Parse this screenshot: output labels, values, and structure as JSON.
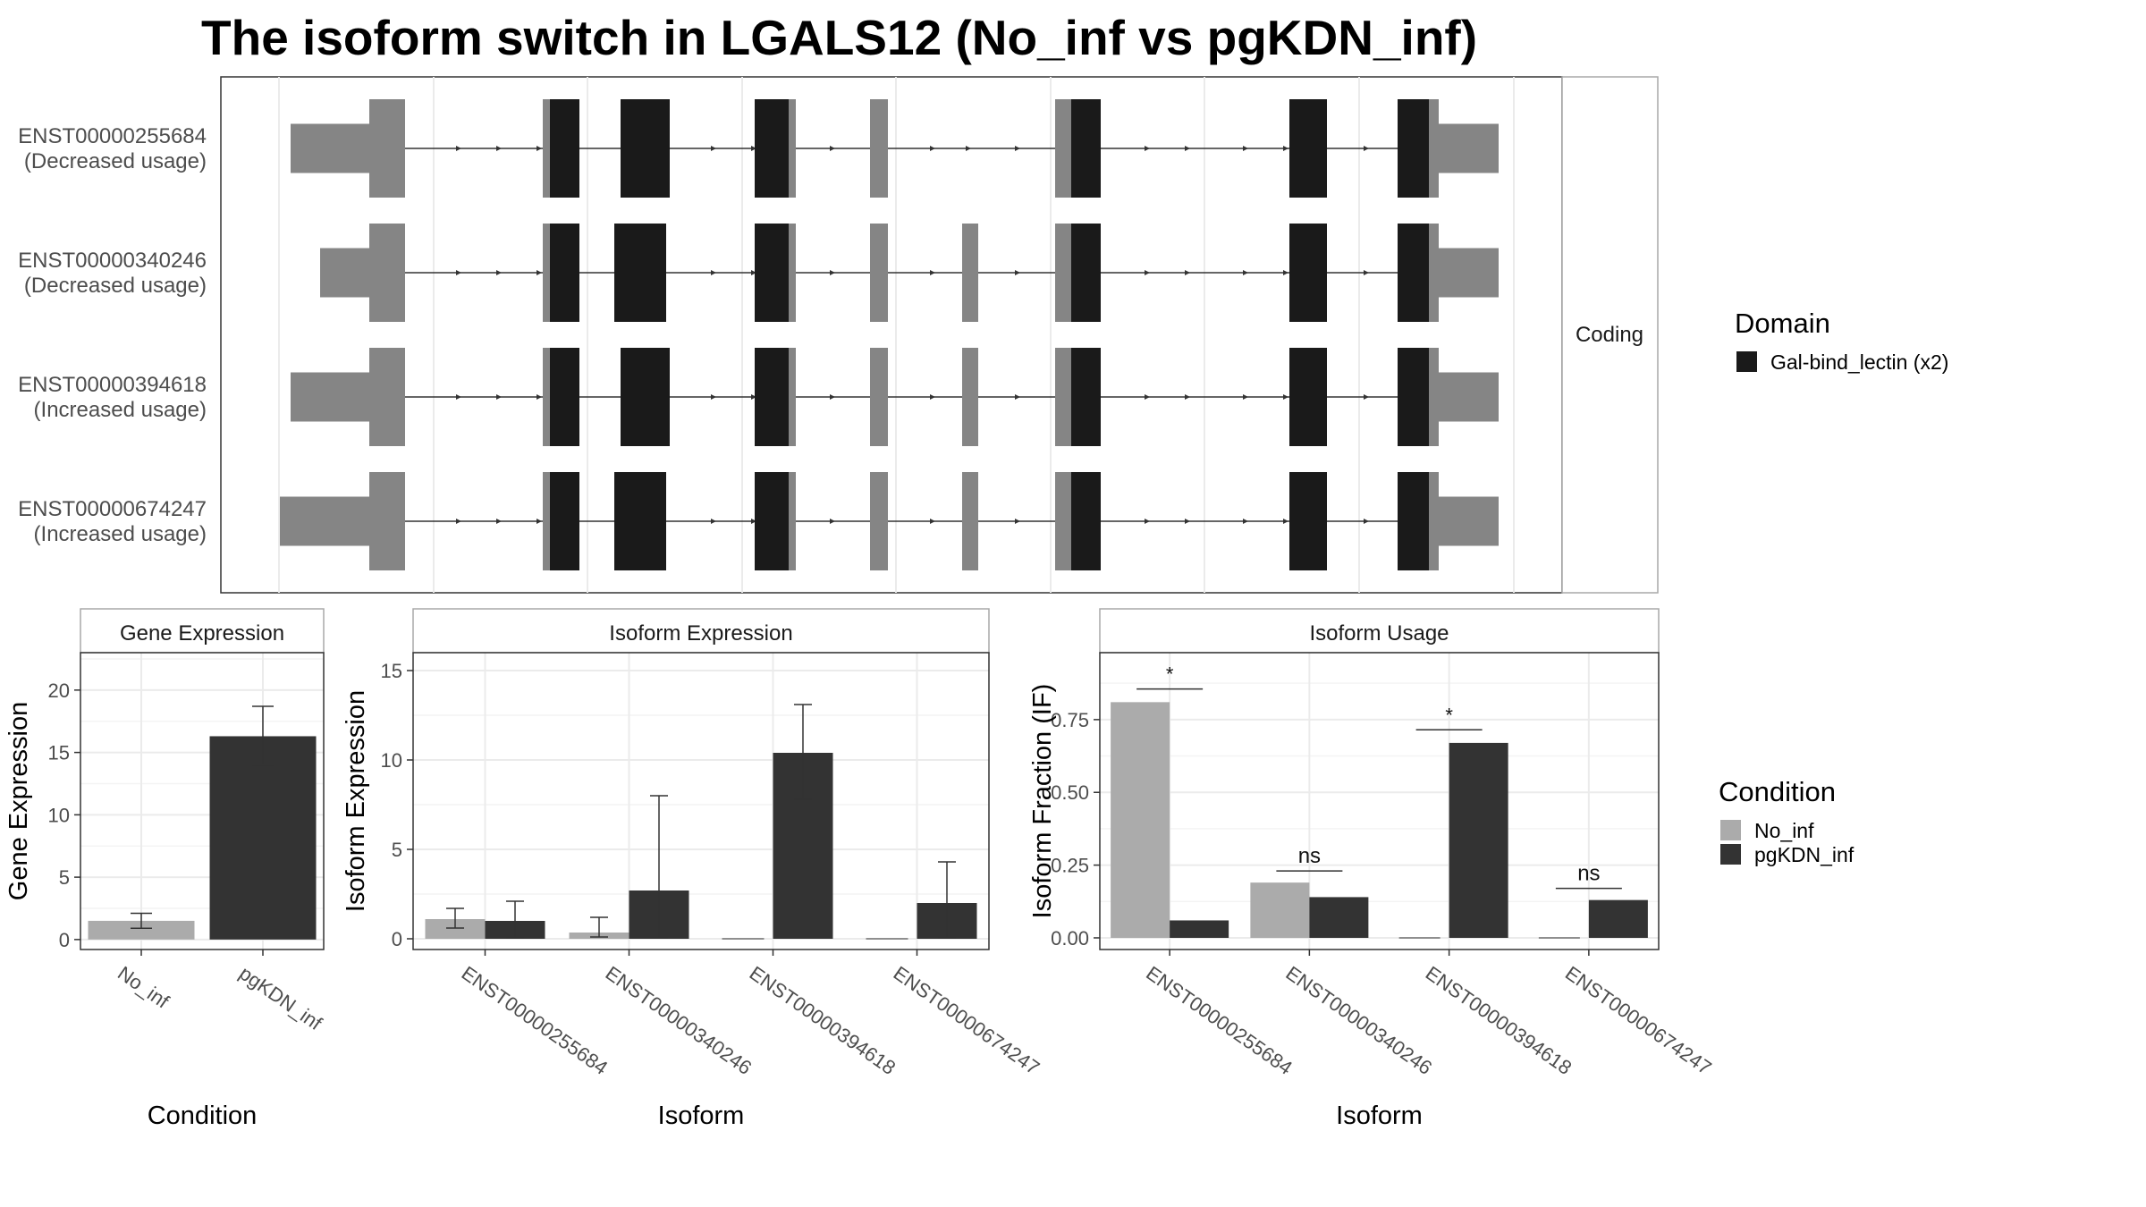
{
  "title": "The isoform switch in LGALS12 (No_inf vs pgKDN_inf)",
  "colors": {
    "utr": "#858585",
    "domain": "#1a1a1a",
    "no_inf": "#ababab",
    "pgkdn_inf": "#333333",
    "panel_border": "#333333",
    "strip_fill": "#ffffff",
    "strip_border": "#a8a8a8",
    "grid": "#ebebeb",
    "text_dark": "#1a1a1a",
    "text_axis": "#4d4d4d"
  },
  "structure": {
    "facet_label": "Coding",
    "legend": {
      "title": "Domain",
      "items": [
        {
          "label": "Gal-bind_lectin (x2)",
          "color": "#1a1a1a"
        }
      ]
    },
    "transcripts": [
      {
        "id": "ENST00000255684",
        "usage": "(Decreased usage)",
        "utr_start": 12,
        "exon7": false
      },
      {
        "id": "ENST00000340246",
        "usage": "(Decreased usage)",
        "utr_start": 45,
        "exon7": true
      },
      {
        "id": "ENST00000394618",
        "usage": "(Increased usage)",
        "utr_start": 12,
        "exon7": true
      },
      {
        "id": "ENST00000674247",
        "usage": "(Increased usage)",
        "utr_start": 0,
        "exon7": true
      }
    ]
  },
  "chart_data": [
    {
      "type": "bar",
      "title": "Gene Expression",
      "xlabel": "Condition",
      "ylabel": "Gene Expression",
      "categories": [
        "No_inf",
        "pgKDN_inf"
      ],
      "values": [
        1.5,
        16.3
      ],
      "error_low": [
        0.9,
        14.0
      ],
      "error_high": [
        2.1,
        18.7
      ],
      "ylim": [
        -0.8,
        23
      ],
      "yticks": [
        0,
        5,
        10,
        15,
        20
      ],
      "ytick_labels": [
        "0",
        "5",
        "10",
        "15",
        "20"
      ]
    },
    {
      "type": "bar",
      "title": "Isoform Expression",
      "xlabel": "Isoform",
      "ylabel": "Isoform Expression",
      "categories": [
        "ENST00000255684",
        "ENST00000340246",
        "ENST00000394618",
        "ENST00000674247"
      ],
      "series": [
        {
          "name": "No_inf",
          "values": [
            1.1,
            0.35,
            0,
            0
          ],
          "error_low": [
            0.6,
            0.1,
            0,
            0
          ],
          "error_high": [
            1.7,
            1.2,
            0,
            0
          ]
        },
        {
          "name": "pgKDN_inf",
          "values": [
            1.0,
            2.7,
            10.4,
            2.0
          ],
          "error_low": [
            0.05,
            0.05,
            7.8,
            0.05
          ],
          "error_high": [
            2.1,
            8.0,
            13.1,
            4.3
          ]
        }
      ],
      "ylim": [
        -0.6,
        16
      ],
      "yticks": [
        0,
        5,
        10,
        15
      ],
      "ytick_labels": [
        "0",
        "5",
        "10",
        "15"
      ]
    },
    {
      "type": "bar",
      "title": "Isoform Usage",
      "xlabel": "Isoform",
      "ylabel": "Isoform Fraction (IF)",
      "categories": [
        "ENST00000255684",
        "ENST00000340246",
        "ENST00000394618",
        "ENST00000674247"
      ],
      "series": [
        {
          "name": "No_inf",
          "values": [
            0.81,
            0.19,
            0,
            0
          ]
        },
        {
          "name": "pgKDN_inf",
          "values": [
            0.06,
            0.14,
            0.67,
            0.13
          ]
        }
      ],
      "significance": [
        {
          "label": "*",
          "y": 0.855
        },
        {
          "label": "ns",
          "y": 0.23
        },
        {
          "label": "*",
          "y": 0.715
        },
        {
          "label": "ns",
          "y": 0.17
        }
      ],
      "ylim": [
        -0.04,
        0.98
      ],
      "yticks": [
        0,
        0.25,
        0.5,
        0.75
      ],
      "ytick_labels": [
        "0.00",
        "0.25",
        "0.50",
        "0.75"
      ]
    }
  ],
  "condition_legend": {
    "title": "Condition",
    "items": [
      {
        "label": "No_inf",
        "color": "#ababab"
      },
      {
        "label": "pgKDN_inf",
        "color": "#333333"
      }
    ]
  }
}
